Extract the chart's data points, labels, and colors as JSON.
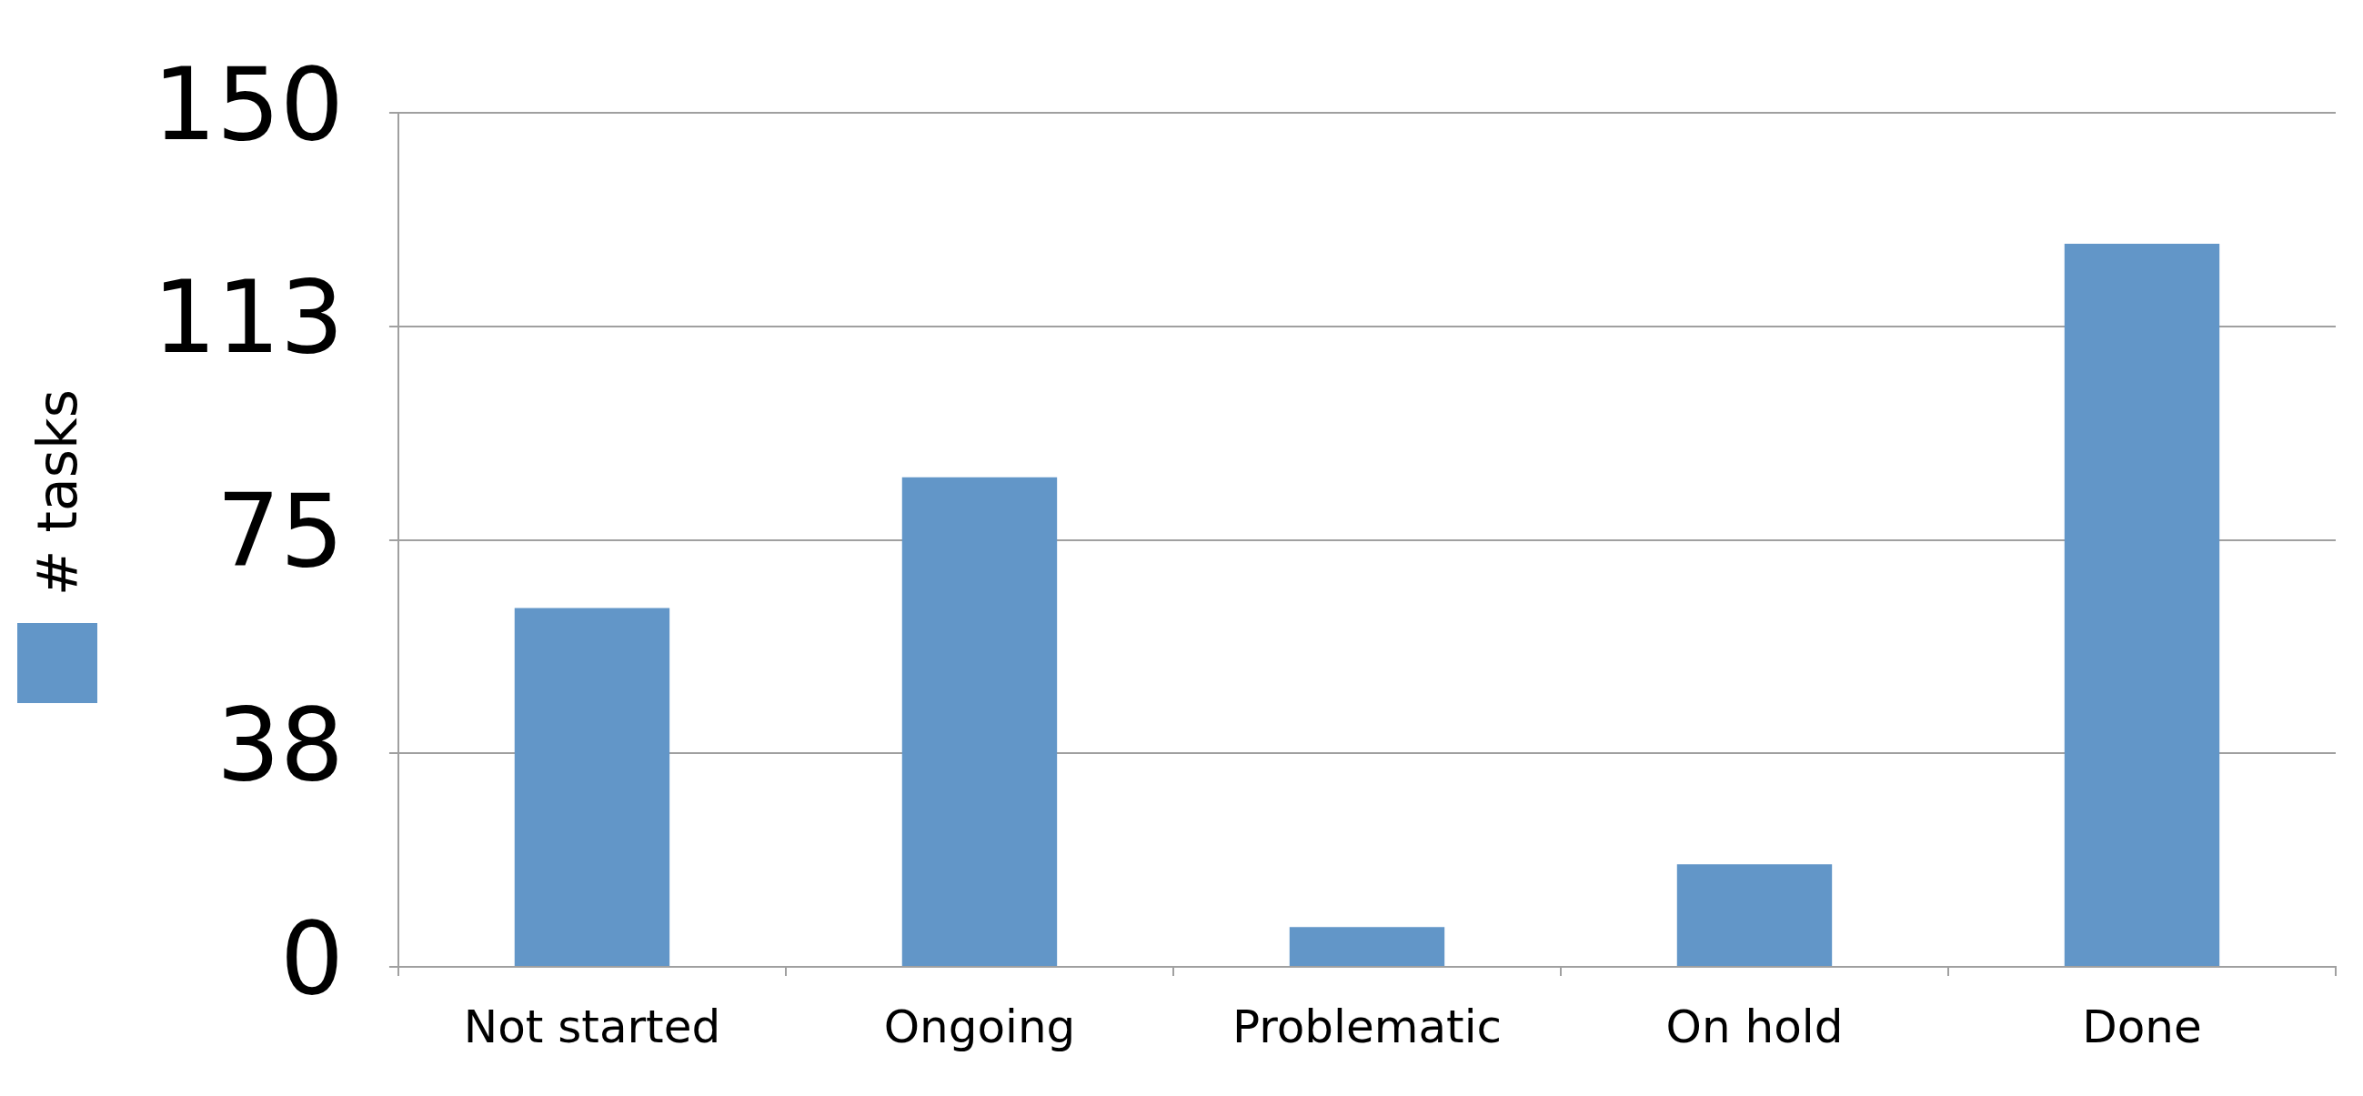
{
  "chart_data": {
    "type": "bar",
    "categories": [
      "Not started",
      "Ongoing",
      "Problematic",
      "On hold",
      "Done"
    ],
    "series": [
      {
        "name": "# tasks",
        "color": "#6296c8",
        "values": [
          63,
          86,
          7,
          18,
          127
        ]
      }
    ],
    "ylim": [
      0,
      150
    ],
    "yticks": [
      0,
      {
        "value": 37.5,
        "label": "38"
      },
      75,
      {
        "value": 112.5,
        "label": "113"
      },
      150
    ],
    "grid": "y",
    "legend": "left"
  }
}
